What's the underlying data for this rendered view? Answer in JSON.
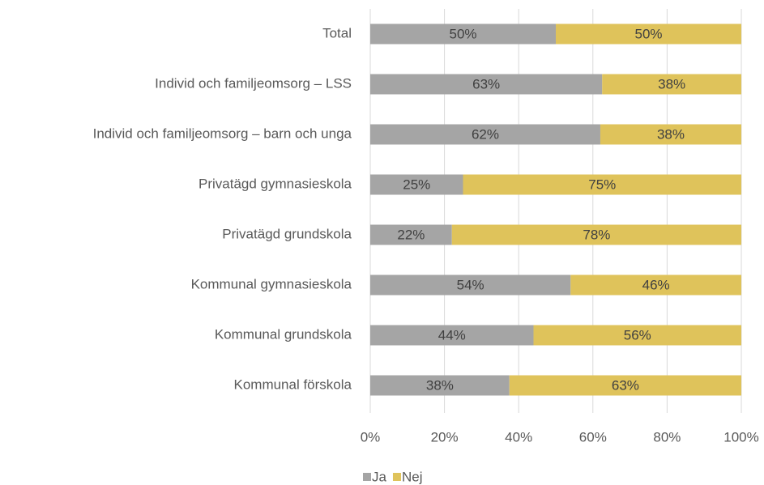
{
  "chart_data": {
    "type": "stacked_bar_horizontal",
    "categories": [
      "Total",
      "Individ och familjeomsorg – LSS",
      "Individ och familjeomsorg – barn och unga",
      "Privatägd gymnasieskola",
      "Privatägd grundskola",
      "Kommunal gymnasieskola",
      "Kommunal grundskola",
      "Kommunal förskola"
    ],
    "series": [
      {
        "name": "Ja",
        "color": "#a5a5a5",
        "values": [
          50,
          62.5,
          62,
          25,
          22,
          54,
          44,
          37.5
        ],
        "value_labels": [
          "50%",
          "63%",
          "62%",
          "25%",
          "22%",
          "54%",
          "44%",
          "38%"
        ]
      },
      {
        "name": "Nej",
        "color": "#dfc35b",
        "values": [
          50,
          37.5,
          38,
          75,
          78,
          46,
          56,
          62.5
        ],
        "value_labels": [
          "50%",
          "38%",
          "38%",
          "75%",
          "78%",
          "46%",
          "56%",
          "63%"
        ]
      }
    ],
    "xlim": [
      0,
      100
    ],
    "xticks": [
      {
        "value": 0,
        "label": "0%"
      },
      {
        "value": 20,
        "label": "20%"
      },
      {
        "value": 40,
        "label": "40%"
      },
      {
        "value": 60,
        "label": "60%"
      },
      {
        "value": 80,
        "label": "80%"
      },
      {
        "value": 100,
        "label": "100%"
      }
    ],
    "grid": true,
    "legend": "bottom"
  }
}
